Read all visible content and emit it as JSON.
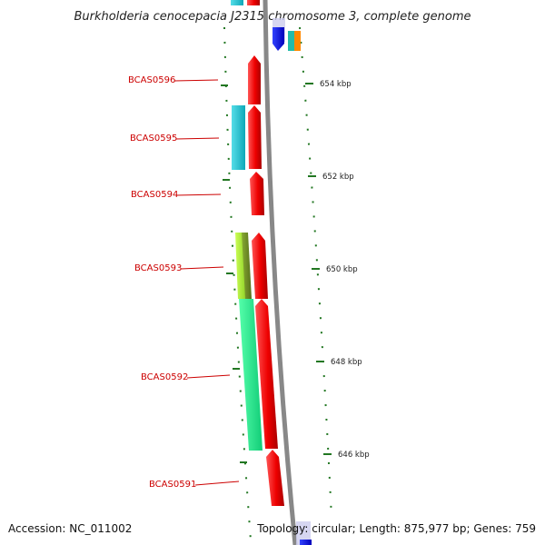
{
  "title": "Burkholderia cenocepacia J2315 chromosome 3, complete genome",
  "footer": {
    "accession": "Accession: NC_011002",
    "topology": "Topology: circular; Length: 875,977 bp; Genes: 759"
  },
  "genes": [
    {
      "label": "BCAS0596"
    },
    {
      "label": "BCAS0595"
    },
    {
      "label": "BCAS0594"
    },
    {
      "label": "BCAS0593"
    },
    {
      "label": "BCAS0592"
    },
    {
      "label": "BCAS0591"
    }
  ],
  "scale_labels": [
    "654 kbp",
    "652 kbp",
    "650 kbp",
    "648 kbp",
    "646 kbp"
  ],
  "colors": {
    "forward_gene": "#ee0000",
    "cog_cyan": "#11c4d4",
    "cog_lime": "#99ee22",
    "cog_olive": "#668822",
    "cog_spring": "#11ee88",
    "cog_blue": "#0000ee",
    "cog_teal": "#22bbaa",
    "cog_orange": "#ff8800",
    "backbone": "#888888",
    "tick": "#227722"
  }
}
